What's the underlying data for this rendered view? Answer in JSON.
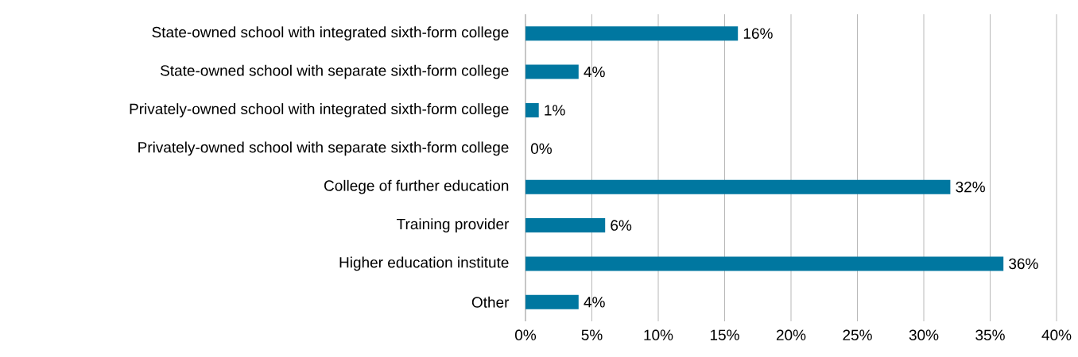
{
  "chart_data": {
    "type": "bar",
    "orientation": "horizontal",
    "categories": [
      "State-owned school with integrated sixth-form college",
      "State-owned school with separate sixth-form college",
      "Privately-owned school with integrated sixth-form college",
      "Privately-owned school with separate sixth-form college",
      "College of further education",
      "Training provider",
      "Higher education institute",
      "Other"
    ],
    "values": [
      16,
      4,
      1,
      0,
      32,
      6,
      36,
      4
    ],
    "value_labels": [
      "16%",
      "4%",
      "1%",
      "0%",
      "32%",
      "6%",
      "36%",
      "4%"
    ],
    "color": "#0077a0",
    "xlim": [
      0,
      40
    ],
    "xticks": [
      {
        "value": 0,
        "label": "0%"
      },
      {
        "value": 5,
        "label": "5%"
      },
      {
        "value": 10,
        "label": "10%"
      },
      {
        "value": 15,
        "label": "15%"
      },
      {
        "value": 20,
        "label": "20%"
      },
      {
        "value": 25,
        "label": "25%"
      },
      {
        "value": 30,
        "label": "30%"
      },
      {
        "value": 35,
        "label": "35%"
      },
      {
        "value": 40,
        "label": "40%"
      }
    ],
    "grid": "x"
  }
}
